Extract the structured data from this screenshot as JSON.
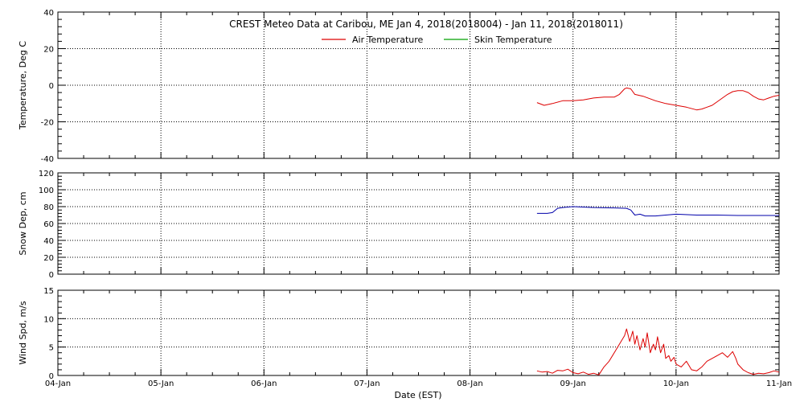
{
  "chart_data": [
    {
      "type": "line",
      "title": "CREST Meteo Data at Caribou, ME   Jan  4, 2018(2018004) - Jan 11, 2018(2018011)",
      "ylabel": "Temperature, Deg C",
      "ylim": [
        -40,
        40
      ],
      "yticks": [
        -40,
        -20,
        0,
        20,
        40
      ],
      "xlim": [
        0,
        7
      ],
      "legend_position": "top-center",
      "grid": true,
      "series": [
        {
          "name": "Air Temperature",
          "color": "#dd0000",
          "x": [
            4.65,
            4.72,
            4.8,
            4.9,
            5.0,
            5.1,
            5.2,
            5.3,
            5.4,
            5.45,
            5.5,
            5.52,
            5.56,
            5.6,
            5.68,
            5.8,
            5.9,
            6.0,
            6.1,
            6.2,
            6.25,
            6.3,
            6.35,
            6.4,
            6.5,
            6.55,
            6.6,
            6.65,
            6.7,
            6.75,
            6.8,
            6.85,
            6.9,
            6.95,
            7.0
          ],
          "y": [
            -9.5,
            -11,
            -10,
            -8.5,
            -8.5,
            -8,
            -7,
            -6.5,
            -6.5,
            -5,
            -2,
            -1.5,
            -2,
            -5,
            -6,
            -8.5,
            -10,
            -11,
            -12,
            -13.5,
            -13,
            -12,
            -11,
            -9,
            -5,
            -3.5,
            -3,
            -3,
            -4,
            -6,
            -7.5,
            -8,
            -7,
            -6,
            -5.5
          ]
        },
        {
          "name": "Skin Temperature",
          "color": "#00a000",
          "x": [],
          "y": []
        }
      ]
    },
    {
      "type": "line",
      "ylabel": "Snow Dep, cm",
      "ylim": [
        0,
        120
      ],
      "yticks": [
        0,
        20,
        40,
        60,
        80,
        100,
        120
      ],
      "xlim": [
        0,
        7
      ],
      "grid": true,
      "series": [
        {
          "color": "#0000aa",
          "x": [
            4.65,
            4.75,
            4.8,
            4.85,
            4.9,
            5.0,
            5.2,
            5.4,
            5.52,
            5.56,
            5.6,
            5.65,
            5.7,
            5.8,
            5.9,
            6.0,
            6.2,
            6.4,
            6.6,
            6.8,
            7.0
          ],
          "y": [
            72,
            72,
            73,
            78,
            79,
            80,
            79,
            78.5,
            78,
            76,
            70,
            71,
            69,
            69,
            70,
            71,
            70,
            70,
            69.5,
            69.5,
            69.5
          ]
        }
      ]
    },
    {
      "type": "line",
      "ylabel": "Wind Spd, m/s",
      "xlabel": "Date (EST)",
      "ylim": [
        0,
        15
      ],
      "yticks": [
        0,
        5,
        10,
        15
      ],
      "xlim": [
        0,
        7
      ],
      "xticks": [
        0,
        1,
        2,
        3,
        4,
        5,
        6,
        7
      ],
      "xticklabels": [
        "04-Jan",
        "05-Jan",
        "06-Jan",
        "07-Jan",
        "08-Jan",
        "09-Jan",
        "10-Jan",
        "11-Jan"
      ],
      "grid": true,
      "series": [
        {
          "color": "#dd0000",
          "x": [
            4.65,
            4.7,
            4.75,
            4.8,
            4.85,
            4.9,
            4.95,
            5.0,
            5.05,
            5.1,
            5.15,
            5.2,
            5.25,
            5.3,
            5.35,
            5.4,
            5.45,
            5.5,
            5.52,
            5.55,
            5.58,
            5.6,
            5.62,
            5.65,
            5.68,
            5.7,
            5.72,
            5.75,
            5.78,
            5.8,
            5.82,
            5.85,
            5.88,
            5.9,
            5.93,
            5.95,
            5.98,
            6.0,
            6.05,
            6.1,
            6.15,
            6.2,
            6.25,
            6.3,
            6.35,
            6.4,
            6.45,
            6.5,
            6.55,
            6.58,
            6.6,
            6.65,
            6.7,
            6.75,
            6.8,
            6.85,
            6.9,
            6.95,
            7.0
          ],
          "y": [
            0.8,
            0.6,
            0.7,
            0.4,
            0.9,
            0.8,
            1.1,
            0.5,
            0.3,
            0.6,
            0.2,
            0.4,
            0.1,
            1.5,
            2.5,
            4.0,
            5.5,
            7.0,
            8.2,
            6.0,
            7.8,
            5.5,
            7.0,
            4.5,
            6.5,
            5.0,
            7.5,
            4.0,
            5.5,
            4.5,
            6.8,
            4.0,
            5.5,
            3.0,
            3.5,
            2.5,
            3.2,
            2.0,
            1.5,
            2.5,
            1.0,
            0.8,
            1.5,
            2.5,
            3.0,
            3.5,
            4.0,
            3.2,
            4.2,
            3.0,
            2.0,
            1.0,
            0.5,
            0.2,
            0.4,
            0.3,
            0.5,
            0.8,
            0.6
          ]
        }
      ]
    }
  ]
}
